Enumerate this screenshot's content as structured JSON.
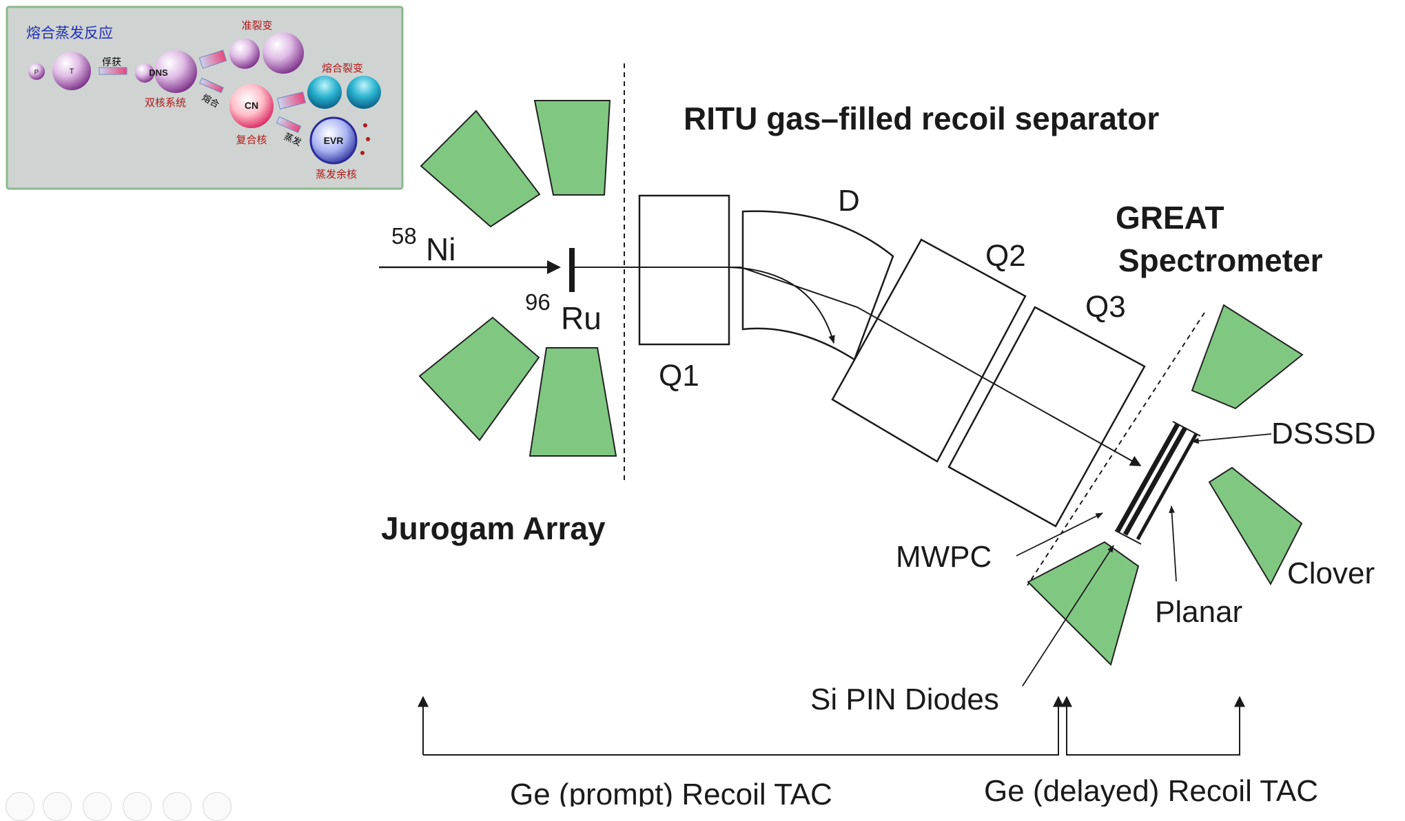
{
  "inset": {
    "title": "熔合蒸发反应",
    "particles": {
      "projectile": "P",
      "target": "T",
      "dns": "DNS",
      "cn": "CN",
      "evr": "EVR"
    },
    "arrows": {
      "capture": "俘获",
      "fusion": "熔合",
      "evaporation": "蒸发"
    },
    "outcomes": {
      "quasi_fission": "准裂变",
      "dns_system": "双核系统",
      "fusion_fission": "熔合裂变",
      "compound_nucleus": "复合核",
      "evaporation_residue": "蒸发余核"
    }
  },
  "diagram": {
    "separator_title": "RITU gas–filled recoil separator",
    "beam": {
      "mass": "58",
      "element": "Ni"
    },
    "target": {
      "mass": "96",
      "element": "Ru"
    },
    "array_label": "Jurogam Array",
    "magnets": {
      "q1": "Q1",
      "d": "D",
      "q2": "Q2",
      "q3": "Q3"
    },
    "spectrometer": {
      "line1": "GREAT",
      "line2": "Spectrometer"
    },
    "detectors": {
      "dsssd": "DSSSD",
      "mwpc": "MWPC",
      "clover": "Clover",
      "planar": "Planar",
      "si_pin": "Si PIN Diodes"
    },
    "tac": {
      "prompt": "Ge (prompt) Recoil TAC",
      "delayed": "Ge (delayed) Recoil TAC"
    },
    "colors": {
      "detector_fill": "#80c882",
      "line": "#1a1a1a",
      "inset_bg": "#cfd3d1",
      "inset_border": "#8ab98c"
    }
  }
}
